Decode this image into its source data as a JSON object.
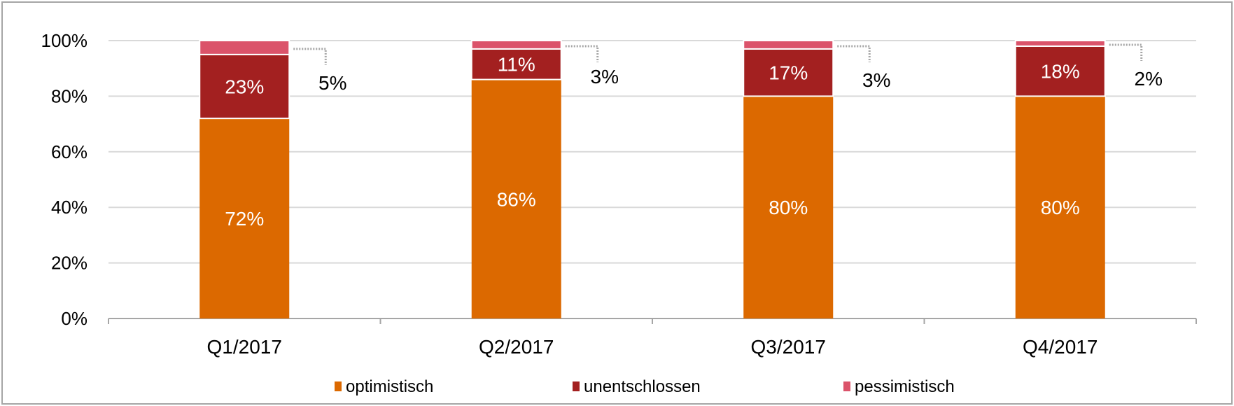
{
  "chart_data": {
    "type": "bar",
    "stacked": true,
    "categories": [
      "Q1/2017",
      "Q2/2017",
      "Q3/2017",
      "Q4/2017"
    ],
    "series": [
      {
        "name": "optimistisch",
        "values": [
          72,
          86,
          80,
          80
        ],
        "color": "#dc6900"
      },
      {
        "name": "unentschlossen",
        "values": [
          23,
          11,
          17,
          18
        ],
        "color": "#a32020"
      },
      {
        "name": "pessimistisch",
        "values": [
          5,
          3,
          3,
          2
        ],
        "color": "#db536a"
      }
    ],
    "data_labels": [
      [
        "72%",
        "86%",
        "80%",
        "80%"
      ],
      [
        "23%",
        "11%",
        "17%",
        "18%"
      ],
      [
        "5%",
        "3%",
        "3%",
        "2%"
      ]
    ],
    "yticks": [
      "0%",
      "20%",
      "40%",
      "60%",
      "80%",
      "100%"
    ],
    "ylim": [
      0,
      100
    ],
    "grid": true,
    "legend": "bottom",
    "title": "",
    "xlabel": "",
    "ylabel": ""
  }
}
